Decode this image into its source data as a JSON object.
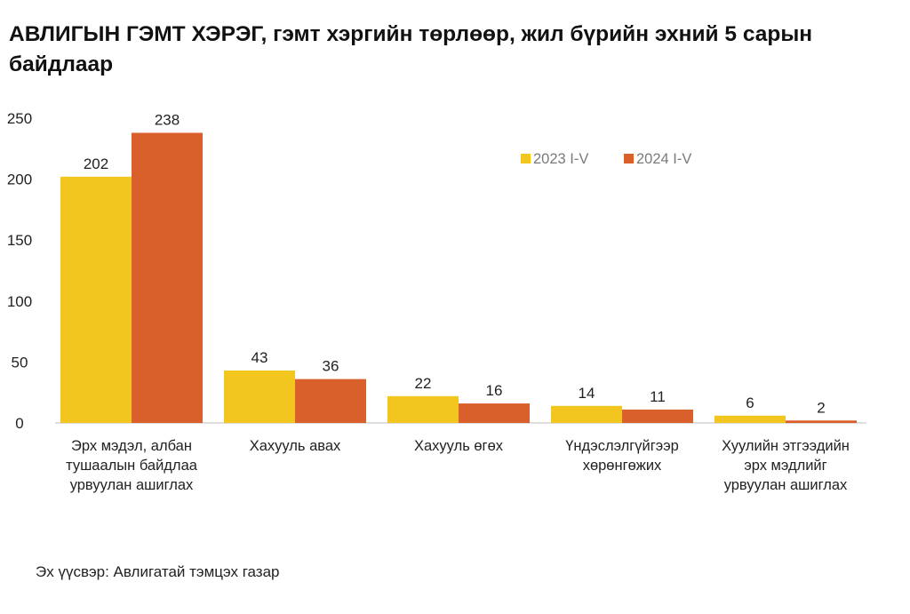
{
  "title": "АВЛИГЫН ГЭМТ ХЭРЭГ, гэмт хэргийн төрлөөр, жил бүрийн эхний 5 сарын байдлаар",
  "source": "Эх үүсвэр: Авлигатай тэмцэх газар",
  "chart_data": {
    "type": "bar",
    "title": "АВЛИГЫН ГЭМТ ХЭРЭГ, гэмт хэргийн төрлөөр, жил бүрийн эхний 5 сарын байдлаар",
    "categories": [
      [
        "Эрх мэдэл, албан",
        "тушаалын байдлаа",
        "урвуулан ашиглах"
      ],
      [
        "Хахууль авах"
      ],
      [
        "Хахууль өгөх"
      ],
      [
        "Үндэслэлгүйгээр",
        "хөрөнгөжих"
      ],
      [
        "Хуулийн этгээдийн",
        "эрх мэдлийг",
        "урвуулан ашиглах"
      ]
    ],
    "series": [
      {
        "name": "2023 I-V",
        "color": "#F2C51F",
        "values": [
          202,
          43,
          22,
          14,
          6
        ]
      },
      {
        "name": "2024 I-V",
        "color": "#D9602B",
        "values": [
          238,
          36,
          16,
          11,
          2
        ]
      }
    ],
    "y_ticks": [
      0,
      50,
      100,
      150,
      200,
      250
    ],
    "ylim": [
      0,
      250
    ],
    "xlabel": "",
    "ylabel": "",
    "grid": false,
    "legend_position": "top-right",
    "data_labels": true
  }
}
